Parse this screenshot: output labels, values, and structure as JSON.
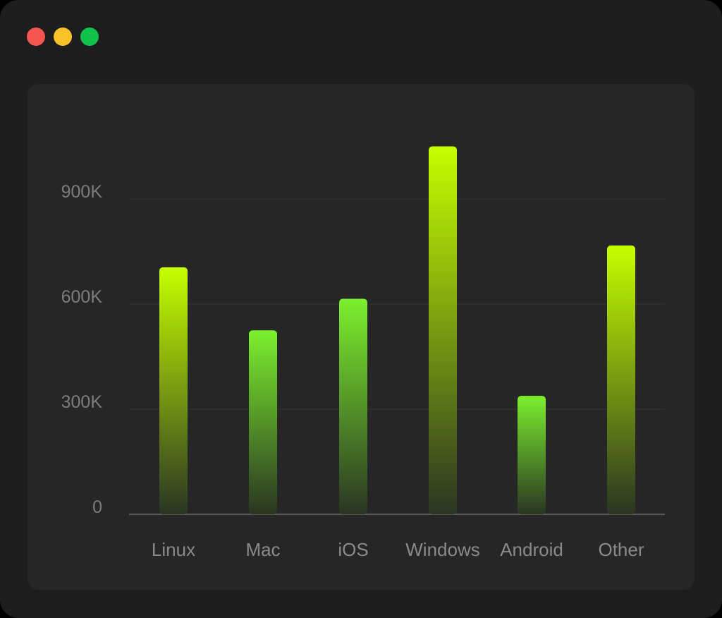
{
  "window": {
    "controls": [
      {
        "name": "close",
        "color": "#f4554f"
      },
      {
        "name": "minimize",
        "color": "#f8c228"
      },
      {
        "name": "maximize",
        "color": "#10c24a"
      }
    ]
  },
  "colors": {
    "bar_top_bright": "#c6ff00",
    "bar_top_mid": "#7cf02e",
    "bar_bottom": "#2d3a22",
    "gridline": "#363636",
    "axis": "#5a5a5a"
  },
  "chart_data": {
    "type": "bar",
    "categories": [
      "Linux",
      "Mac",
      "iOS",
      "Windows",
      "Android",
      "Other"
    ],
    "values": [
      705000,
      525000,
      615000,
      1050000,
      338000,
      767000
    ],
    "ylim": [
      0,
      1050000
    ],
    "yticks": [
      0,
      300000,
      600000,
      900000
    ],
    "ytick_labels": [
      "0",
      "300K",
      "600K",
      "900K"
    ],
    "grid": true,
    "legend": "none"
  }
}
